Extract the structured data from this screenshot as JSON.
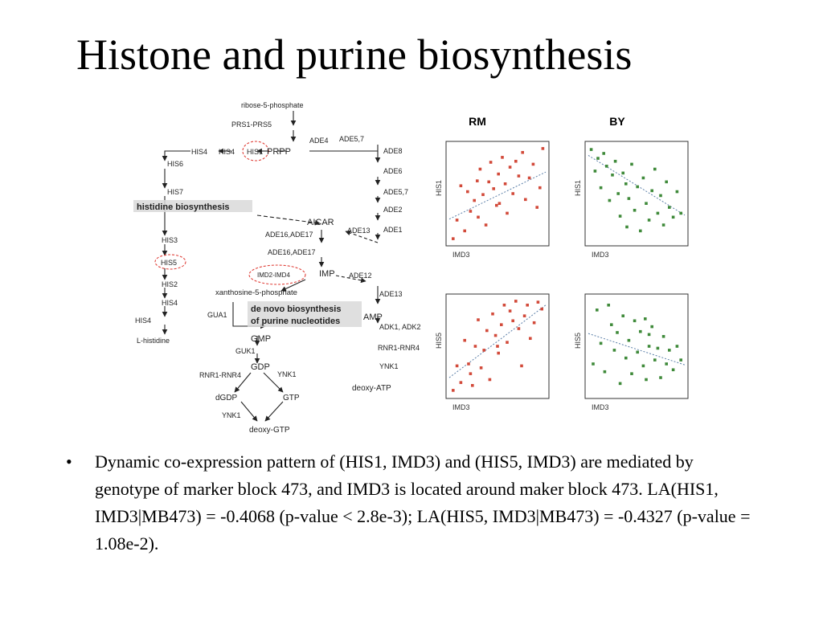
{
  "title": "Histone and purine biosynthesis",
  "bullet_symbol": "•",
  "bullet_text": "Dynamic co-expression pattern of (HIS1, IMD3) and (HIS5, IMD3) are mediated by genotype of marker block 473, and IMD3 is located around maker block 473. LA(HIS1, IMD3|MB473) = -0.4068 (p-value < 2.8e-3); LA(HIS5, IMD3|MB473) = -0.4327 (p-value = 1.08e-2).",
  "pathway": {
    "nodes": {
      "ribose": "ribose-5-phosphate",
      "prs": "PRS1-PRS5",
      "prpp": "PRPP",
      "his1": "HIS1",
      "his4a": "HIS4",
      "his4b": "HIS4",
      "ade4": "ADE4",
      "ade57a": "ADE5,7",
      "ade8": "ADE8",
      "ade6": "ADE6",
      "ade57b": "ADE5,7",
      "ade2": "ADE2",
      "ade1": "ADE1",
      "his6": "HIS6",
      "his7": "HIS7",
      "acar": "AICAR",
      "ade13a": "ADE13",
      "ade1617a": "ADE16,ADE17",
      "ade1617b": "ADE16,ADE17",
      "his3": "HIS3",
      "his5": "HIS5",
      "imd": "IMD2-IMD4",
      "imp": "IMP",
      "ade12": "ADE12",
      "his2": "HIS2",
      "his4c": "HIS4",
      "his4d": "HIS4",
      "lhis": "L-histidine",
      "xmp": "xanthosine-5-phosphate",
      "ade13b": "ADE13",
      "gua1": "GUA1",
      "amp": "AMP",
      "adk": "ADK1, ADK2",
      "gmp": "GMP",
      "guk1": "GUK1",
      "rnr1": "RNR1-RNR4",
      "gdp": "GDP",
      "rnr2": "RNR1-RNR4",
      "ynk1a": "YNK1",
      "ynk1b": "YNK1",
      "datp": "deoxy-ATP",
      "dgdp": "dGDP",
      "gtp": "GTP",
      "ynk1c": "YNK1",
      "dgtp": "deoxy-GTP"
    },
    "label_histidine": "histidine biosynthesis",
    "label_denovo_1": "de novo biosynthesis",
    "label_denovo_2": "of purine nucleotides"
  },
  "scatter_headers": {
    "left": "RM",
    "right": "BY"
  },
  "colors": {
    "rm": "#d24a3a",
    "by": "#3f8a3a",
    "highlight": "#e0413a",
    "trend": "#5b7fa8"
  },
  "chart_data": [
    {
      "type": "scatter",
      "group": "RM",
      "xlabel": "IMD3",
      "ylabel": "HIS1",
      "xlim": [
        0,
        10
      ],
      "ylim": [
        0,
        10
      ],
      "points": [
        [
          0.4,
          0.4
        ],
        [
          0.8,
          2.3
        ],
        [
          1.2,
          5.8
        ],
        [
          1.6,
          1.2
        ],
        [
          1.9,
          5.2
        ],
        [
          2.2,
          3.2
        ],
        [
          2.6,
          4.3
        ],
        [
          3.0,
          2.6
        ],
        [
          3.2,
          7.5
        ],
        [
          3.5,
          4.9
        ],
        [
          3.8,
          1.8
        ],
        [
          4.1,
          6.2
        ],
        [
          4.3,
          8.2
        ],
        [
          4.6,
          5.5
        ],
        [
          4.9,
          3.8
        ],
        [
          5.1,
          7.0
        ],
        [
          5.5,
          8.7
        ],
        [
          5.8,
          6.0
        ],
        [
          6.0,
          3.0
        ],
        [
          6.3,
          7.7
        ],
        [
          6.6,
          5.0
        ],
        [
          6.9,
          8.3
        ],
        [
          7.2,
          6.8
        ],
        [
          7.6,
          9.2
        ],
        [
          7.9,
          4.4
        ],
        [
          8.3,
          6.6
        ],
        [
          8.7,
          8.0
        ],
        [
          9.1,
          3.6
        ],
        [
          9.4,
          5.6
        ],
        [
          9.7,
          9.6
        ],
        [
          5.2,
          4.0
        ],
        [
          2.9,
          6.3
        ]
      ],
      "trend": [
        [
          0,
          2.4
        ],
        [
          10,
          7.2
        ]
      ]
    },
    {
      "type": "scatter",
      "group": "BY",
      "xlabel": "IMD3",
      "ylabel": "HIS1",
      "xlim": [
        0,
        10
      ],
      "ylim": [
        0,
        10
      ],
      "points": [
        [
          0.3,
          9.5
        ],
        [
          0.7,
          7.3
        ],
        [
          1.0,
          8.6
        ],
        [
          1.3,
          5.6
        ],
        [
          1.6,
          9.1
        ],
        [
          1.9,
          7.8
        ],
        [
          2.2,
          4.3
        ],
        [
          2.5,
          6.9
        ],
        [
          2.8,
          8.3
        ],
        [
          3.1,
          5.0
        ],
        [
          3.3,
          2.7
        ],
        [
          3.6,
          7.1
        ],
        [
          3.9,
          6.0
        ],
        [
          4.2,
          4.5
        ],
        [
          4.5,
          8.0
        ],
        [
          4.8,
          3.3
        ],
        [
          5.1,
          5.7
        ],
        [
          5.4,
          1.2
        ],
        [
          5.7,
          6.6
        ],
        [
          6.0,
          4.0
        ],
        [
          6.3,
          2.3
        ],
        [
          6.6,
          5.3
        ],
        [
          6.9,
          7.5
        ],
        [
          7.2,
          3.0
        ],
        [
          7.5,
          4.8
        ],
        [
          7.8,
          1.8
        ],
        [
          8.1,
          6.2
        ],
        [
          8.4,
          3.6
        ],
        [
          8.8,
          2.6
        ],
        [
          9.2,
          5.2
        ],
        [
          9.6,
          3.0
        ],
        [
          4.0,
          1.6
        ]
      ],
      "trend": [
        [
          0,
          8.9
        ],
        [
          10,
          2.8
        ]
      ]
    },
    {
      "type": "scatter",
      "group": "RM",
      "xlabel": "IMD3",
      "ylabel": "HIS5",
      "xlim": [
        0,
        10
      ],
      "ylim": [
        0,
        10
      ],
      "points": [
        [
          0.4,
          0.5
        ],
        [
          0.8,
          3.0
        ],
        [
          1.2,
          1.3
        ],
        [
          1.6,
          5.6
        ],
        [
          2.0,
          3.2
        ],
        [
          2.4,
          1.0
        ],
        [
          2.7,
          5.0
        ],
        [
          3.0,
          7.7
        ],
        [
          3.3,
          2.8
        ],
        [
          3.6,
          4.6
        ],
        [
          3.9,
          6.6
        ],
        [
          4.2,
          1.6
        ],
        [
          4.5,
          8.3
        ],
        [
          4.8,
          6.1
        ],
        [
          5.1,
          4.3
        ],
        [
          5.4,
          7.2
        ],
        [
          5.7,
          9.2
        ],
        [
          6.0,
          5.4
        ],
        [
          6.3,
          8.6
        ],
        [
          6.6,
          7.6
        ],
        [
          6.9,
          9.6
        ],
        [
          7.2,
          6.8
        ],
        [
          7.5,
          3.0
        ],
        [
          7.8,
          8.1
        ],
        [
          8.1,
          9.2
        ],
        [
          8.4,
          5.8
        ],
        [
          8.8,
          7.4
        ],
        [
          9.2,
          9.5
        ],
        [
          9.6,
          8.8
        ],
        [
          2.2,
          2.2
        ],
        [
          5.0,
          5.0
        ]
      ],
      "trend": [
        [
          0,
          1.8
        ],
        [
          10,
          9.2
        ]
      ]
    },
    {
      "type": "scatter",
      "group": "BY",
      "xlabel": "IMD3",
      "ylabel": "HIS5",
      "xlim": [
        0,
        10
      ],
      "ylim": [
        0,
        10
      ],
      "points": [
        [
          0.5,
          3.2
        ],
        [
          0.9,
          8.7
        ],
        [
          1.3,
          5.3
        ],
        [
          1.7,
          2.4
        ],
        [
          2.1,
          9.2
        ],
        [
          2.4,
          7.2
        ],
        [
          2.7,
          4.6
        ],
        [
          3.0,
          6.4
        ],
        [
          3.3,
          1.2
        ],
        [
          3.6,
          8.1
        ],
        [
          3.9,
          3.8
        ],
        [
          4.2,
          5.6
        ],
        [
          4.5,
          2.2
        ],
        [
          4.8,
          7.6
        ],
        [
          5.1,
          4.4
        ],
        [
          5.4,
          6.5
        ],
        [
          5.7,
          3.0
        ],
        [
          6.0,
          1.6
        ],
        [
          6.3,
          5.0
        ],
        [
          6.6,
          7.0
        ],
        [
          6.9,
          3.6
        ],
        [
          7.2,
          4.8
        ],
        [
          7.5,
          1.8
        ],
        [
          7.8,
          6.0
        ],
        [
          8.1,
          3.2
        ],
        [
          8.4,
          4.6
        ],
        [
          8.8,
          2.6
        ],
        [
          9.2,
          5.0
        ],
        [
          9.6,
          3.6
        ],
        [
          5.9,
          7.8
        ],
        [
          6.3,
          6.2
        ]
      ],
      "trend": [
        [
          0,
          6.3
        ],
        [
          10,
          3.1
        ]
      ]
    }
  ]
}
